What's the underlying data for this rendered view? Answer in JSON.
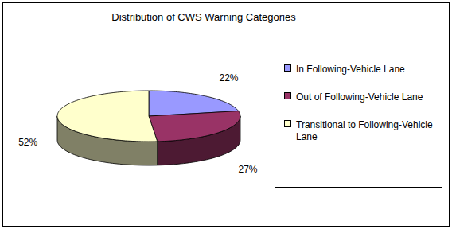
{
  "chart_data": {
    "type": "pie",
    "title": "Distribution of CWS Warning Categories",
    "categories": [
      "In Following-Vehicle Lane",
      "Out of Following-Vehicle Lane",
      "Transitional to Following-Vehicle Lane"
    ],
    "values": [
      22,
      27,
      52
    ],
    "value_labels": [
      "22%",
      "27%",
      "52%"
    ],
    "colors": [
      "#9999ff",
      "#993366",
      "#ffffcc"
    ],
    "data_labels": true,
    "legend": "right"
  }
}
